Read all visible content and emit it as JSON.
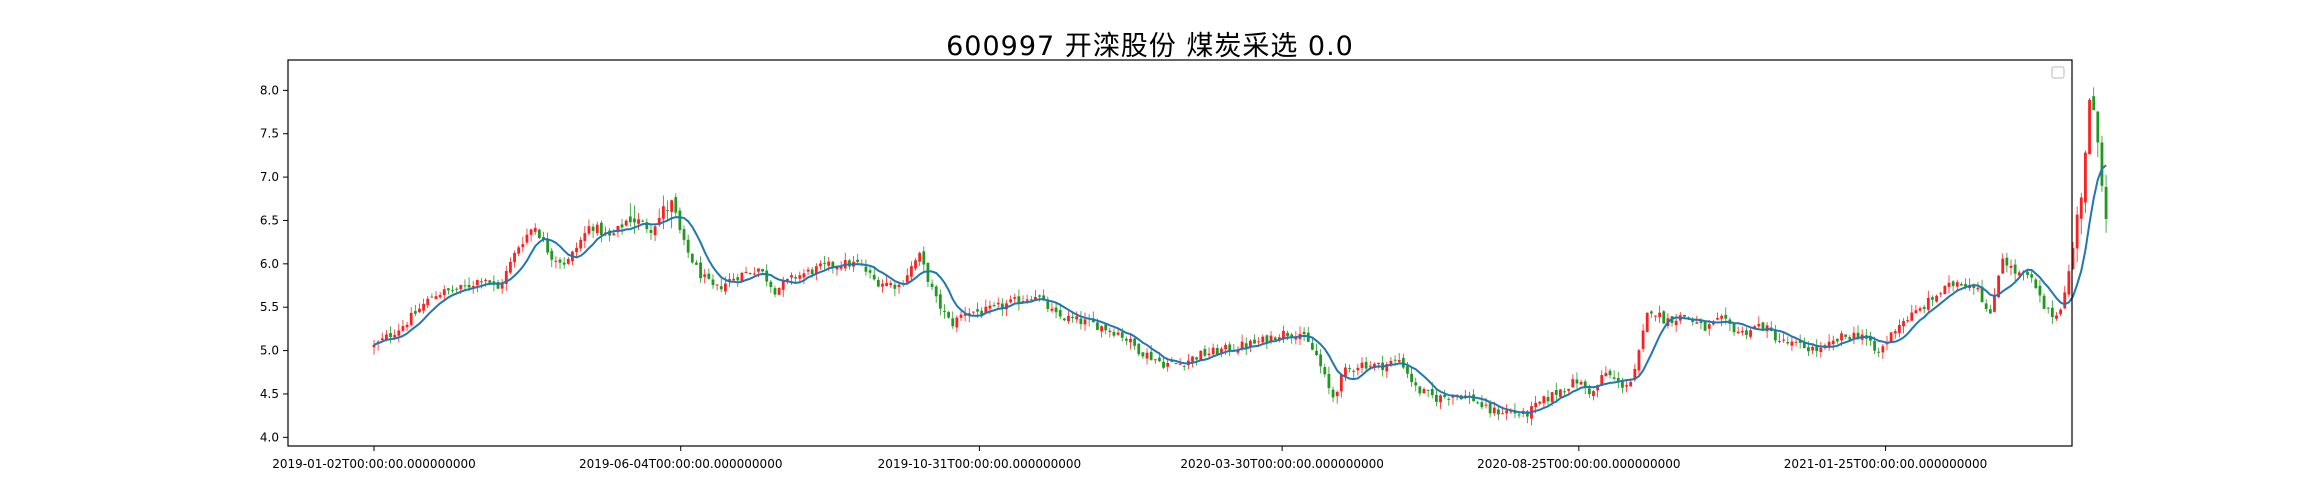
{
  "chart_title": "600997 开滦股份 煤炭采选 0.0",
  "chart_data": {
    "type": "candlestick",
    "title": "600997 开滦股份 煤炭采选 0.0",
    "xlabel": "",
    "ylabel": "",
    "ylim": [
      3.9,
      8.35
    ],
    "y_ticks": [
      4.0,
      4.5,
      5.0,
      5.5,
      6.0,
      6.5,
      7.0,
      7.5,
      8.0
    ],
    "x_tick_labels": [
      "2019-01-02T00:00:00.000000000",
      "2019-06-04T00:00:00.000000000",
      "2019-10-31T00:00:00.000000000",
      "2020-03-30T00:00:00.000000000",
      "2020-08-25T00:00:00.000000000",
      "2021-01-25T00:00:00.000000000"
    ],
    "x_tick_days": [
      0,
      153,
      302,
      453,
      601,
      754
    ],
    "x_range_days": [
      -39,
      770
    ],
    "close_path": [
      [
        0,
        5.05
      ],
      [
        15,
        5.3
      ],
      [
        30,
        5.65
      ],
      [
        45,
        5.72
      ],
      [
        55,
        5.85
      ],
      [
        62,
        5.7
      ],
      [
        72,
        6.2
      ],
      [
        80,
        6.45
      ],
      [
        88,
        6.1
      ],
      [
        96,
        6.0
      ],
      [
        108,
        6.45
      ],
      [
        118,
        6.3
      ],
      [
        128,
        6.55
      ],
      [
        138,
        6.4
      ],
      [
        148,
        6.7
      ],
      [
        155,
        6.2
      ],
      [
        162,
        5.9
      ],
      [
        170,
        5.7
      ],
      [
        180,
        5.85
      ],
      [
        192,
        5.95
      ],
      [
        200,
        5.7
      ],
      [
        210,
        5.85
      ],
      [
        222,
        5.95
      ],
      [
        232,
        6.0
      ],
      [
        242,
        6.0
      ],
      [
        250,
        5.8
      ],
      [
        262,
        5.75
      ],
      [
        272,
        6.1
      ],
      [
        280,
        5.6
      ],
      [
        288,
        5.3
      ],
      [
        295,
        5.45
      ],
      [
        305,
        5.45
      ],
      [
        318,
        5.55
      ],
      [
        330,
        5.65
      ],
      [
        340,
        5.4
      ],
      [
        350,
        5.35
      ],
      [
        360,
        5.3
      ],
      [
        372,
        5.2
      ],
      [
        382,
        5.0
      ],
      [
        394,
        4.85
      ],
      [
        402,
        4.85
      ],
      [
        412,
        4.95
      ],
      [
        422,
        5.0
      ],
      [
        432,
        5.05
      ],
      [
        442,
        5.1
      ],
      [
        452,
        5.2
      ],
      [
        462,
        5.2
      ],
      [
        470,
        4.95
      ],
      [
        478,
        4.45
      ],
      [
        484,
        4.75
      ],
      [
        492,
        4.85
      ],
      [
        502,
        4.82
      ],
      [
        512,
        4.9
      ],
      [
        520,
        4.55
      ],
      [
        530,
        4.45
      ],
      [
        540,
        4.5
      ],
      [
        548,
        4.45
      ],
      [
        556,
        4.3
      ],
      [
        566,
        4.3
      ],
      [
        574,
        4.25
      ],
      [
        582,
        4.4
      ],
      [
        592,
        4.55
      ],
      [
        600,
        4.65
      ],
      [
        608,
        4.5
      ],
      [
        614,
        4.75
      ],
      [
        622,
        4.6
      ],
      [
        628,
        4.65
      ],
      [
        636,
        5.5
      ],
      [
        644,
        5.35
      ],
      [
        654,
        5.4
      ],
      [
        664,
        5.25
      ],
      [
        672,
        5.35
      ],
      [
        682,
        5.2
      ],
      [
        692,
        5.3
      ],
      [
        702,
        5.1
      ],
      [
        712,
        5.05
      ],
      [
        722,
        5.0
      ],
      [
        732,
        5.15
      ],
      [
        742,
        5.2
      ],
      [
        750,
        4.95
      ],
      [
        760,
        5.3
      ],
      [
        770,
        5.45
      ],
      [
        780,
        5.65
      ],
      [
        790,
        5.8
      ],
      [
        800,
        5.75
      ],
      [
        806,
        5.35
      ],
      [
        812,
        6.1
      ],
      [
        818,
        5.9
      ],
      [
        826,
        5.85
      ],
      [
        834,
        5.45
      ],
      [
        840,
        5.4
      ],
      [
        846,
        5.95
      ],
      [
        852,
        6.9
      ],
      [
        856,
        7.9
      ],
      [
        860,
        7.4
      ],
      [
        864,
        6.6
      ]
    ],
    "x_scale_days_per_unit": 1.1,
    "candle_count": 420,
    "ma_window": 8,
    "colors": {
      "up": "#ff1f1f",
      "down": "#1f9a1f",
      "ma_line": "#1f77b4"
    },
    "legend_placement": "upper right (empty)",
    "grid": false
  }
}
